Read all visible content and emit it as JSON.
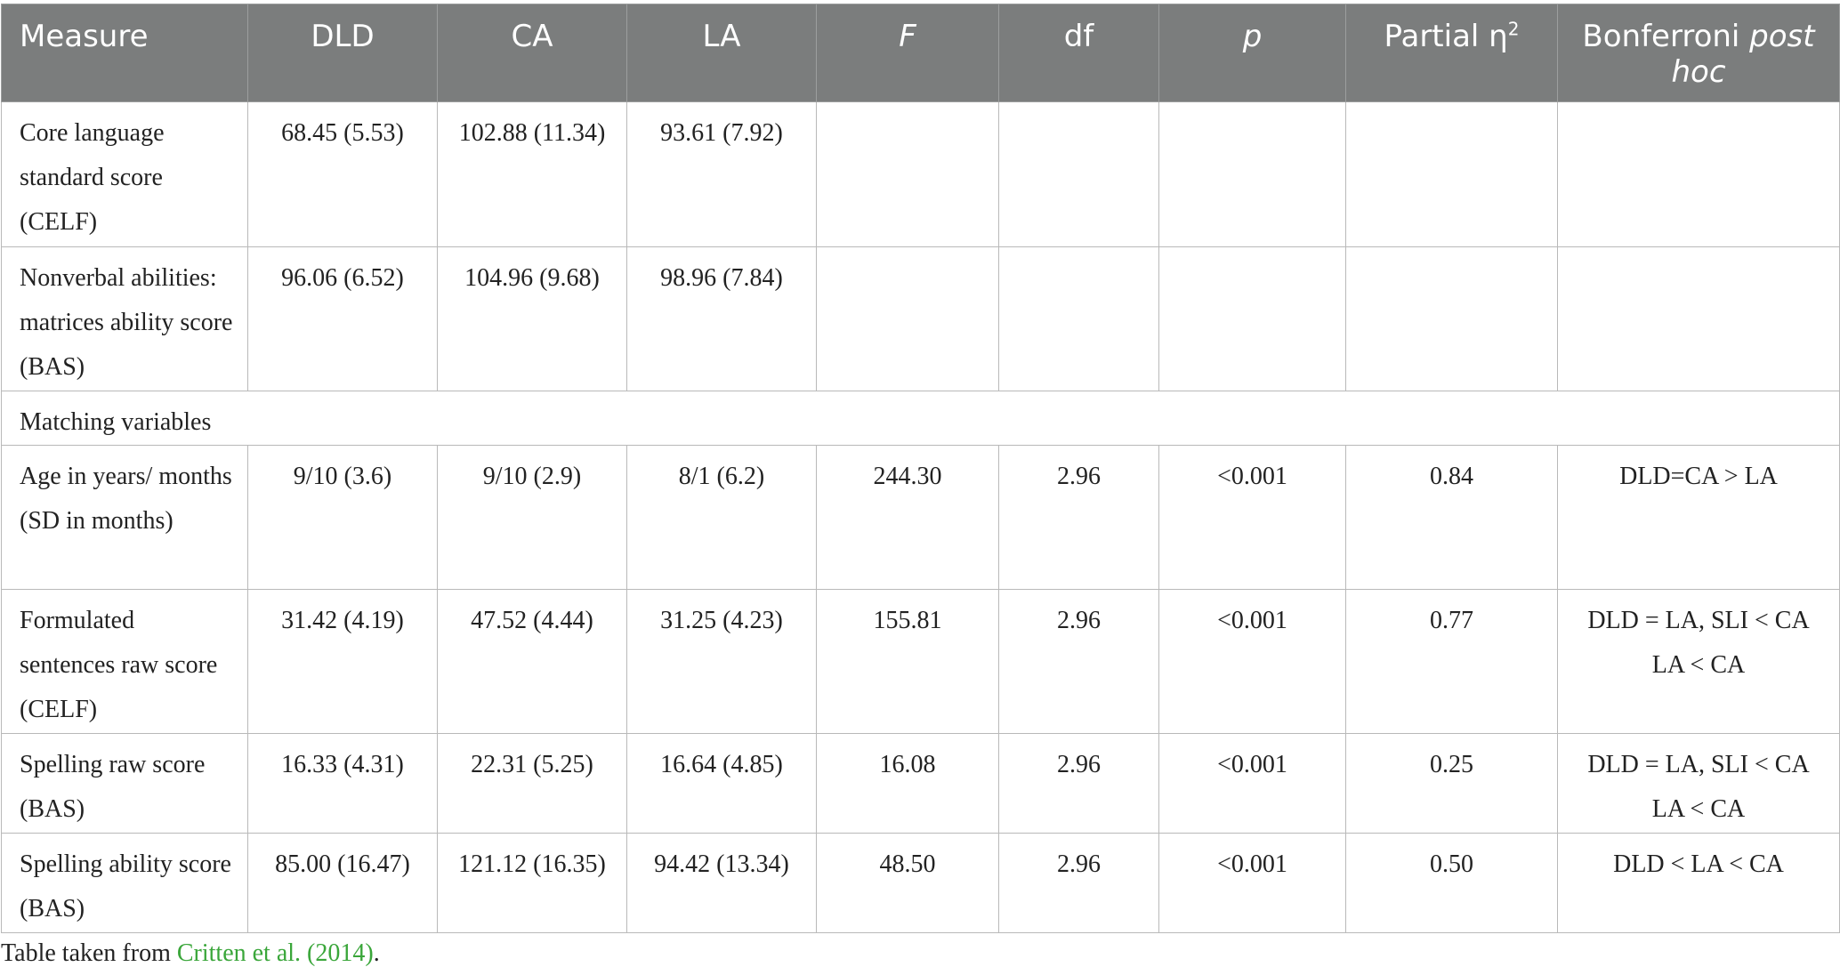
{
  "columns": [
    "Measure",
    "DLD",
    "CA",
    "LA",
    "F",
    "df",
    "p",
    "Partial η",
    "Bonferroni post hoc"
  ],
  "eta_sup": "2",
  "bonferroni_label": {
    "main": "Bonferroni ",
    "italic": "post hoc"
  },
  "rows": [
    {
      "measure": "Core language standard score (CELF)",
      "dld": "68.45 (5.53)",
      "ca": "102.88 (11.34)",
      "la": "93.61 (7.92)",
      "f": "",
      "df": "",
      "p": "",
      "eta": "",
      "posthoc": []
    },
    {
      "measure": "Nonverbal abilities: matrices ability score (BAS)",
      "dld": "96.06 (6.52)",
      "ca": "104.96 (9.68)",
      "la": "98.96 (7.84)",
      "f": "",
      "df": "",
      "p": "",
      "eta": "",
      "posthoc": []
    },
    {
      "section": "Matching variables"
    },
    {
      "measure": "Age in years/ months (SD in months)",
      "dld": "9/10 (3.6)",
      "ca": "9/10 (2.9)",
      "la": "8/1 (6.2)",
      "f": "244.30",
      "df": "2.96",
      "p": "<0.001",
      "eta": "0.84",
      "posthoc": [
        "DLD=CA > LA"
      ]
    },
    {
      "measure": "Formulated sentences raw score (CELF)",
      "dld": "31.42 (4.19)",
      "ca": "47.52 (4.44)",
      "la": "31.25 (4.23)",
      "f": "155.81",
      "df": "2.96",
      "p": "<0.001",
      "eta": "0.77",
      "posthoc": [
        "DLD = LA, SLI < CA",
        "LA < CA"
      ]
    },
    {
      "measure": "Spelling raw score (BAS)",
      "dld": "16.33 (4.31)",
      "ca": "22.31 (5.25)",
      "la": "16.64 (4.85)",
      "f": "16.08",
      "df": "2.96",
      "p": "<0.001",
      "eta": "0.25",
      "posthoc": [
        "DLD = LA, SLI < CA",
        "LA < CA"
      ]
    },
    {
      "measure": "Spelling ability score (BAS)",
      "dld": "85.00 (16.47)",
      "ca": "121.12 (16.35)",
      "la": "94.42 (13.34)",
      "f": "48.50",
      "df": "2.96",
      "p": "<0.001",
      "eta": "0.50",
      "posthoc": [
        "DLD < LA < CA"
      ]
    }
  ],
  "note": {
    "prefix": "Table taken from ",
    "link": "Critten et al. (2014)",
    "suffix": "."
  }
}
